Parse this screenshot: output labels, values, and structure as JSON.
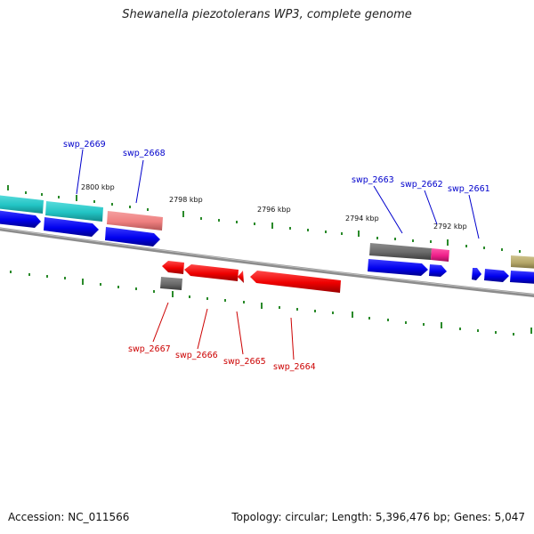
{
  "header": {
    "title": "Shewanella piezotolerans WP3, complete genome"
  },
  "footer": {
    "accession": "Accession: NC_011566",
    "summary": "Topology: circular; Length: 5,396,476 bp; Genes: 5,047"
  },
  "colors": {
    "cds": "#0000ee",
    "rev_cds": "#ee0000",
    "cyan": "#22c4c4",
    "pink": "#ee7f7f",
    "gray": "#6a6a6a",
    "magenta": "#ee1f8a",
    "olive": "#b4a668",
    "backbone": "#8c8c8c",
    "dots": "#2a8a2a",
    "fwd_label": "#0000cc",
    "rev_label": "#cc0000"
  },
  "map": {
    "tick_labels": [
      "2800 kbp",
      "2798 kbp",
      "2796 kbp",
      "2794 kbp",
      "2792 kbp"
    ],
    "forward_genes": [
      "swp_2669",
      "swp_2668",
      "swp_2663",
      "swp_2662",
      "swp_2661"
    ],
    "reverse_genes": [
      "swp_2667",
      "swp_2666",
      "swp_2665",
      "swp_2664"
    ]
  }
}
